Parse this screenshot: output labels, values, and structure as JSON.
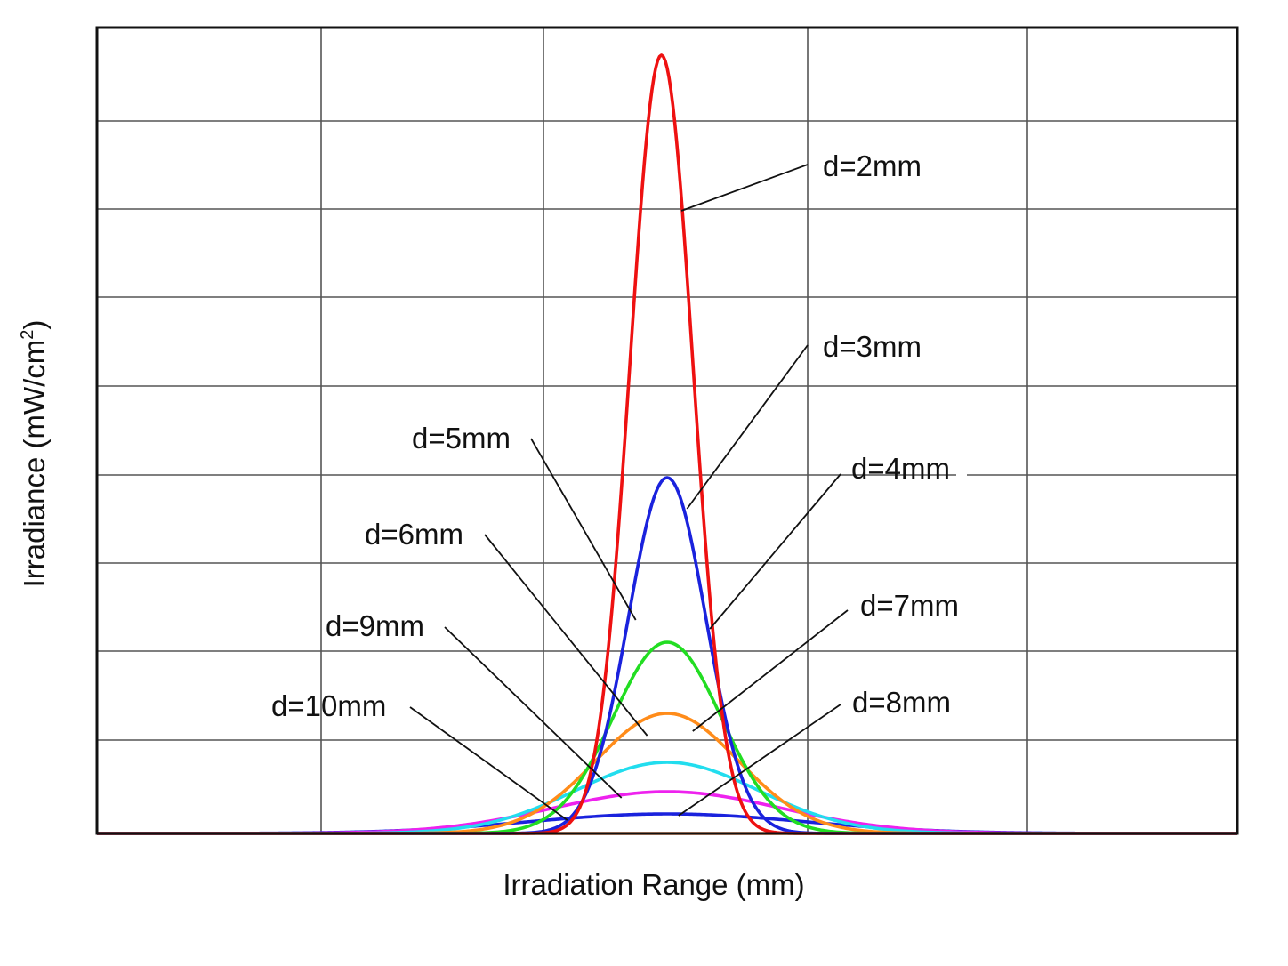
{
  "chart_data": {
    "type": "line",
    "title": "",
    "xlabel": "Irradiation Range (mm)",
    "ylabel": "Irradiance (mW/cm²)",
    "ylabel_parts": {
      "main": "Irradiance (mW/cm",
      "sup": "2",
      "close": ")"
    },
    "x_unit": "mm",
    "xlim": [
      -10,
      10
    ],
    "ylim": [
      0,
      9.06
    ],
    "grid": true,
    "x_tick_labels": [],
    "y_tick_labels": [],
    "legend": "none",
    "series": [
      {
        "name": "d=2mm",
        "color": "#ee1111",
        "peak": 8.75,
        "width": 0.55,
        "center": -0.1
      },
      {
        "name": "d=3mm",
        "color": "#1a22dd",
        "peak": 4.0,
        "width": 0.68,
        "center": 0.0
      },
      {
        "name": "d=4mm",
        "color": "#22dd22",
        "peak": 2.15,
        "width": 0.95,
        "center": 0.0
      },
      {
        "name": "d=5mm",
        "color": "#ff8c1a",
        "peak": 1.35,
        "width": 1.25,
        "center": 0.0
      },
      {
        "name": "d=6mm",
        "color": "#22ddee",
        "peak": 0.8,
        "width": 1.6,
        "center": 0.0
      },
      {
        "name": "d=7mm",
        "color": "#ee22ee",
        "peak": 0.47,
        "width": 2.0,
        "center": 0.0
      },
      {
        "name": "d=8mm",
        "color": "#1a22dd",
        "peak": 0.22,
        "width": 2.4,
        "center": 0.0
      },
      {
        "name": "d=10mm",
        "color": "#ff6a1a",
        "peak": 0.0,
        "width": 2.8,
        "center": 0.0
      }
    ],
    "annotations": [
      {
        "text": "d=2mm",
        "at_x": 0.25,
        "at_y": 7.0
      },
      {
        "text": "d=3mm",
        "at_x": 0.35,
        "at_y": 3.65
      },
      {
        "text": "d=4mm",
        "at_x": 0.75,
        "at_y": 2.3
      },
      {
        "text": "d=5mm",
        "at_x": -0.55,
        "at_y": 2.4
      },
      {
        "text": "d=6mm",
        "at_x": -0.35,
        "at_y": 1.1
      },
      {
        "text": "d=7mm",
        "at_x": 0.45,
        "at_y": 1.15
      },
      {
        "text": "d=8mm",
        "at_x": 0.2,
        "at_y": 0.2
      },
      {
        "text": "d=9mm",
        "at_x": -0.8,
        "at_y": 0.4
      },
      {
        "text": "d=10mm",
        "at_x": -1.75,
        "at_y": 0.15
      }
    ]
  }
}
